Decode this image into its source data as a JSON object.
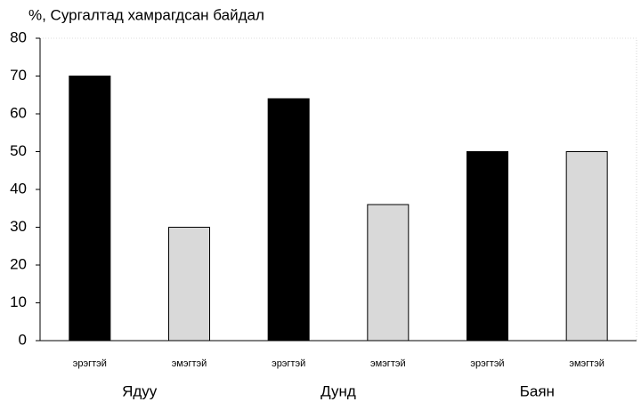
{
  "chart_data": {
    "type": "bar",
    "title": "%, Сургалтад хамрагдсан байдал",
    "categories": [
      "Ядуу",
      "Дунд",
      "Баян"
    ],
    "series": [
      {
        "name": "эрэгтэй",
        "color": "#000000",
        "values": [
          70,
          64,
          50
        ]
      },
      {
        "name": "эмэгтэй",
        "color": "#d9d9d9",
        "values": [
          30,
          36,
          50
        ]
      }
    ],
    "ylim": [
      0,
      80
    ],
    "yticks": [
      0,
      10,
      20,
      30,
      40,
      50,
      60,
      70,
      80
    ],
    "grid": false
  }
}
